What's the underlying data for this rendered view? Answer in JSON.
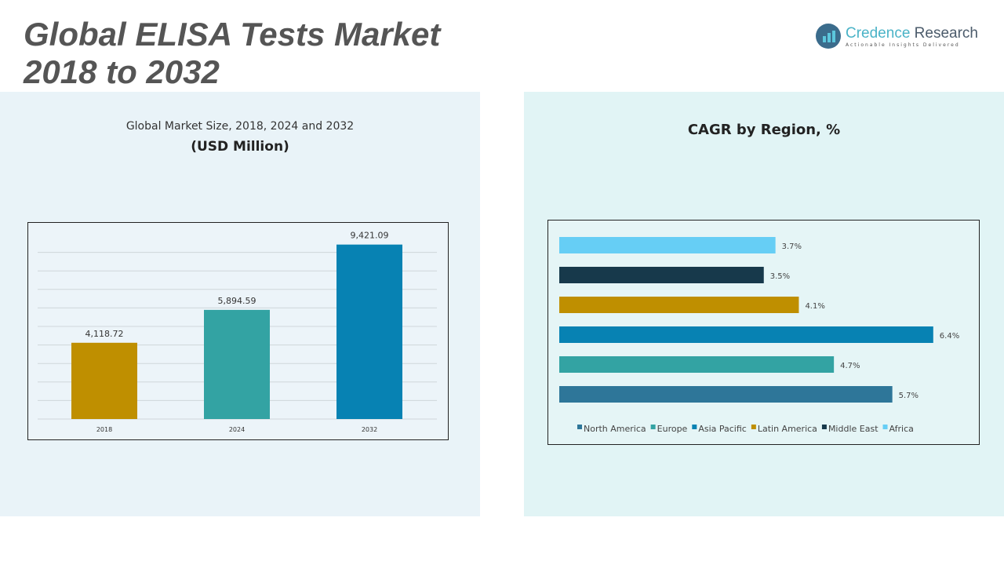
{
  "title": {
    "line1": "Global ELISA Tests Market",
    "line2": "2018 to 2032"
  },
  "logo": {
    "name_a": "Credence",
    "name_b": "Research",
    "tagline": "Actionable Insights Delivered"
  },
  "chart_data": [
    {
      "type": "bar",
      "title": "Global Market Size, 2018, 2024 and 2032",
      "subtitle": "(USD Million)",
      "categories": [
        "2018",
        "2024",
        "2032"
      ],
      "values": [
        4118.72,
        5894.59,
        9421.09
      ],
      "labels": [
        "4,118.72",
        "5,894.59",
        "9,421.09"
      ],
      "colors": [
        "#bf8f00",
        "#33a3a3",
        "#0782b3"
      ],
      "ylim": [
        0,
        10000
      ],
      "grid": true
    },
    {
      "type": "bar",
      "orientation": "horizontal",
      "title": "CAGR by Region, %",
      "categories": [
        "Africa",
        "Middle East",
        "Latin America",
        "Asia Pacific",
        "Europe",
        "North America"
      ],
      "values": [
        3.7,
        3.5,
        4.1,
        6.4,
        4.7,
        5.7
      ],
      "labels": [
        "3.7%",
        "3.5%",
        "4.1%",
        "6.4%",
        "4.7%",
        "5.7%"
      ],
      "colors": [
        "#66cef5",
        "#17394b",
        "#bf8f00",
        "#0782b3",
        "#33a3a3",
        "#2e7699"
      ],
      "legend": [
        "North America",
        "Europe",
        "Asia Pacific",
        "Latin America",
        "Middle East",
        "Africa"
      ],
      "legend_colors": [
        "#2e7699",
        "#33a3a3",
        "#0782b3",
        "#bf8f00",
        "#17394b",
        "#66cef5"
      ],
      "legend_position": "bottom"
    }
  ]
}
